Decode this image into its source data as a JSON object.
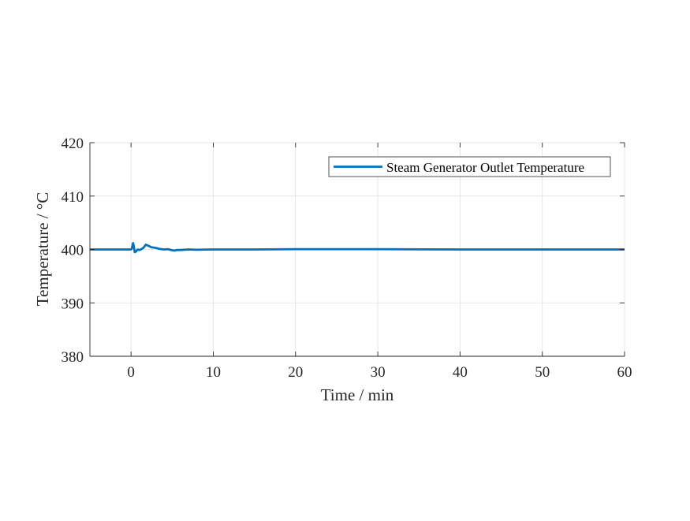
{
  "chart_data": {
    "type": "line",
    "title": "",
    "xlabel": "Time / min",
    "ylabel": "Temperature / °C",
    "xlim": [
      -5,
      60
    ],
    "ylim": [
      380,
      420
    ],
    "xticks": [
      0,
      10,
      20,
      30,
      40,
      50,
      60
    ],
    "yticks": [
      380,
      390,
      400,
      410,
      420
    ],
    "grid": true,
    "legend_position": "top-right",
    "series": [
      {
        "name": "Steam Generator Outlet Temperature",
        "color": "#0072BD",
        "x": [
          -5,
          0,
          0.1,
          0.25,
          0.35,
          0.45,
          0.6,
          0.8,
          1.0,
          1.2,
          1.5,
          1.8,
          2.1,
          2.5,
          3.0,
          3.5,
          4.0,
          4.5,
          5.0,
          5.3,
          5.6,
          6.0,
          7.0,
          8.0,
          10.0,
          15.0,
          20.0,
          30.0,
          40.0,
          50.0,
          60.0
        ],
        "y": [
          400.0,
          400.0,
          400.2,
          401.2,
          400.5,
          399.5,
          399.6,
          400.0,
          399.9,
          400.0,
          400.3,
          400.9,
          400.7,
          400.4,
          400.3,
          400.1,
          400.0,
          400.05,
          399.85,
          399.8,
          399.9,
          399.9,
          400.0,
          399.95,
          400.0,
          400.0,
          400.05,
          400.05,
          400.0,
          400.0,
          400.0
        ]
      }
    ]
  }
}
